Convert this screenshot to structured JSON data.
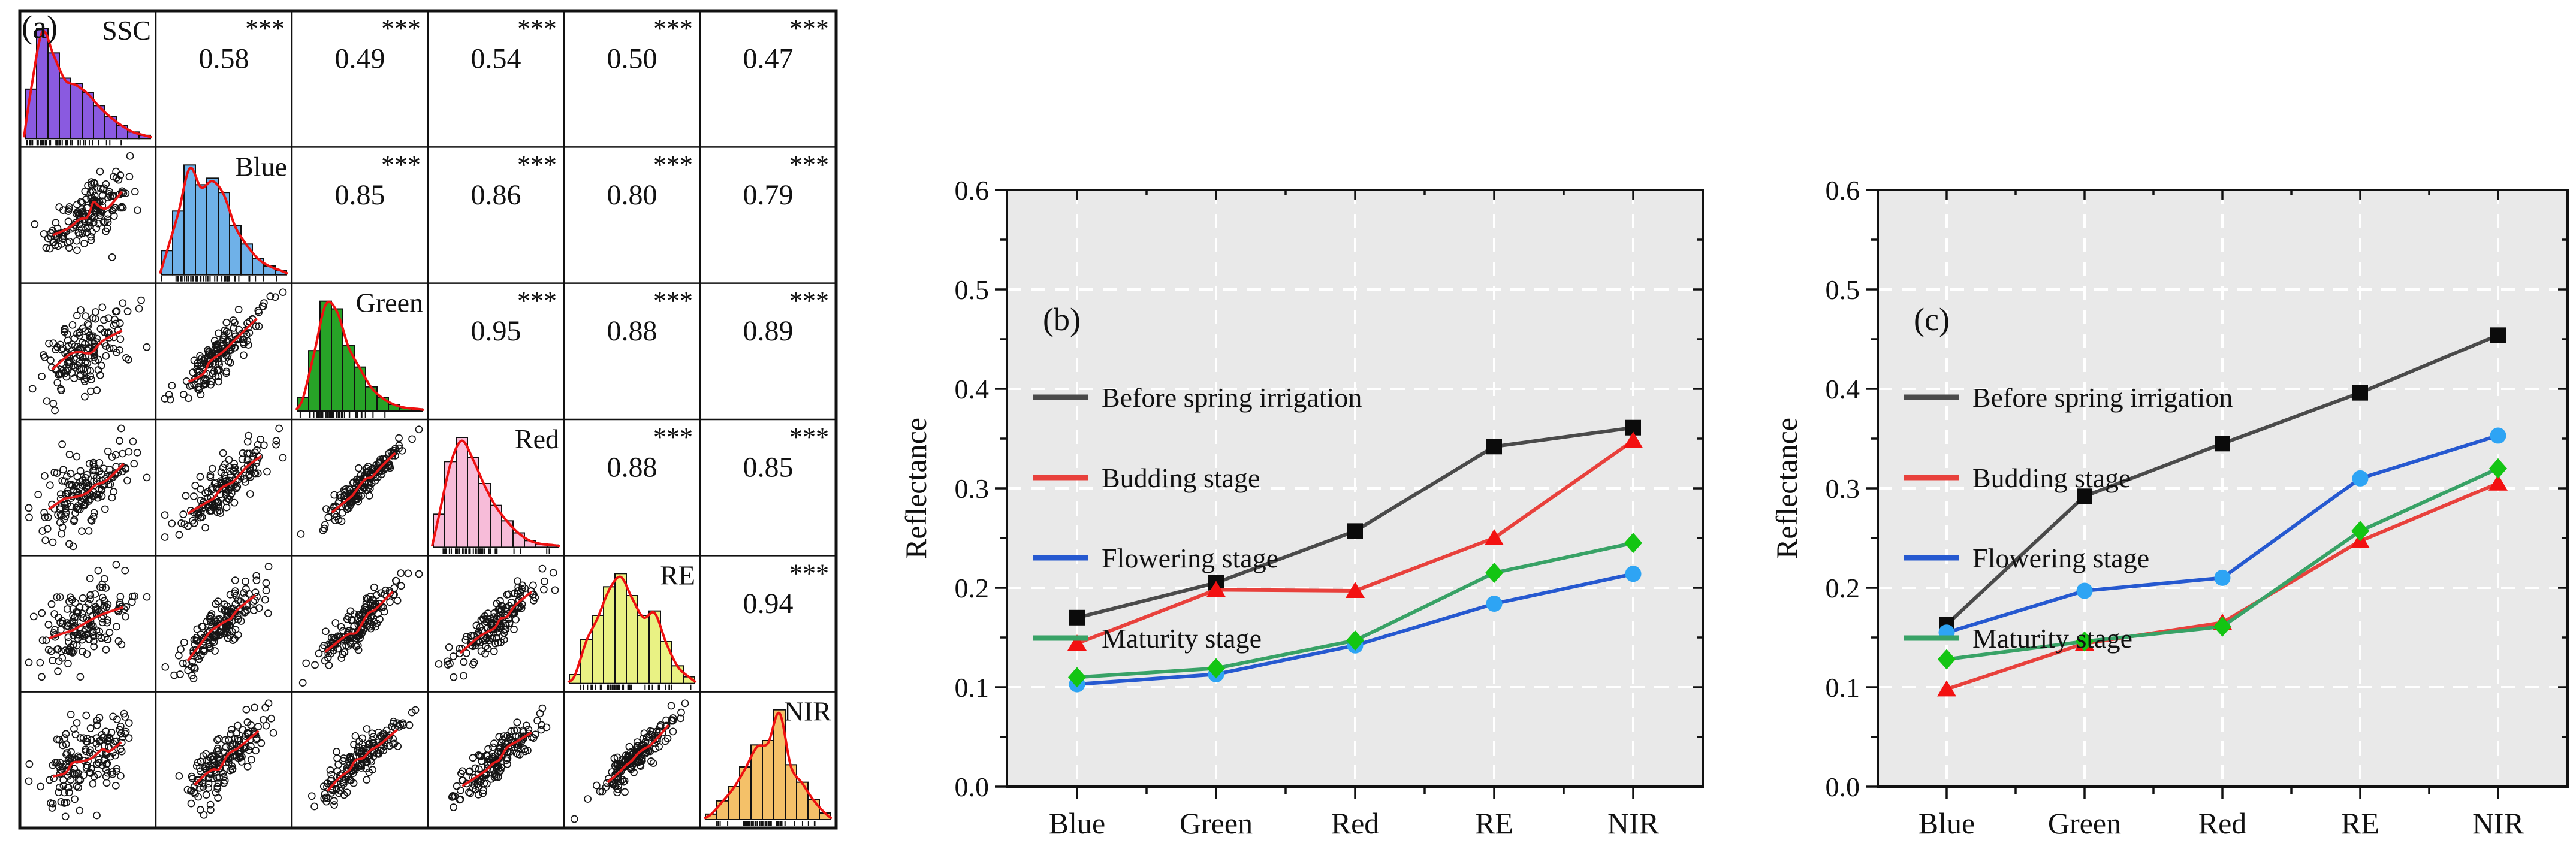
{
  "panels": {
    "a": {
      "label": "(a)"
    },
    "b": {
      "label": "(b)"
    },
    "c": {
      "label": "(c)"
    }
  },
  "colors": {
    "plot_background": "#e9e9e9",
    "gridline": "#ffffff",
    "significance_stars": "#d94a62",
    "scatter_fit_line": "#e51a1a",
    "histogram_curve": "#ee1111",
    "spine": "#111111"
  },
  "chart_data": [
    {
      "type": "scatter",
      "subtype": "correlation-pairplot",
      "panel": "(a)",
      "variables": [
        {
          "name": "SSC",
          "fill": "#8a5ae0"
        },
        {
          "name": "Blue",
          "fill": "#6fb1e8"
        },
        {
          "name": "Green",
          "fill": "#27a327"
        },
        {
          "name": "Red",
          "fill": "#f7bcd9"
        },
        {
          "name": "RE",
          "fill": "#e9f284"
        },
        {
          "name": "NIR",
          "fill": "#f4c169"
        }
      ],
      "significance": "***",
      "correlations": [
        [
          null,
          0.58,
          0.49,
          0.54,
          0.5,
          0.47
        ],
        [
          null,
          null,
          0.85,
          0.86,
          0.8,
          0.79
        ],
        [
          null,
          null,
          null,
          0.95,
          0.88,
          0.89
        ],
        [
          null,
          null,
          null,
          null,
          0.88,
          0.85
        ],
        [
          null,
          null,
          null,
          null,
          null,
          0.94
        ],
        [
          null,
          null,
          null,
          null,
          null,
          null
        ]
      ],
      "diagonal": "histogram with red density curve and rug marks",
      "lower_triangle": "black open-circle scatter plots with red fit line",
      "histograms": [
        [
          0.45,
          1.0,
          0.78,
          0.55,
          0.5,
          0.42,
          0.3,
          0.2,
          0.12,
          0.06,
          0.03
        ],
        [
          0.22,
          0.58,
          1.0,
          0.82,
          0.88,
          0.75,
          0.45,
          0.28,
          0.15,
          0.08,
          0.04
        ],
        [
          0.12,
          0.55,
          1.0,
          0.93,
          0.6,
          0.4,
          0.22,
          0.12,
          0.06,
          0.03,
          0.02
        ],
        [
          0.3,
          0.78,
          1.0,
          0.82,
          0.58,
          0.38,
          0.24,
          0.13,
          0.06,
          0.03,
          0.02
        ],
        [
          0.08,
          0.4,
          0.62,
          0.88,
          1.0,
          0.8,
          0.62,
          0.66,
          0.38,
          0.16,
          0.06
        ],
        [
          0.05,
          0.17,
          0.3,
          0.48,
          0.68,
          0.72,
          1.0,
          0.5,
          0.34,
          0.18,
          0.06
        ]
      ]
    },
    {
      "type": "line",
      "panel": "(b)",
      "ylabel": "Reflectance",
      "ylim": [
        0.0,
        0.6
      ],
      "yticks": [
        "0.0",
        "0.1",
        "0.2",
        "0.3",
        "0.4",
        "0.5",
        "0.6"
      ],
      "categories": [
        "Blue",
        "Green",
        "Red",
        "RE",
        "NIR"
      ],
      "grid": "white dashed gridlines on gray background",
      "legend_position": "upper-left",
      "series": [
        {
          "name": "Before spring irrigation",
          "color": "#4a4a4a",
          "marker": "square",
          "marker_color": "#0b0b0b",
          "values": [
            0.17,
            0.205,
            0.257,
            0.342,
            0.361
          ]
        },
        {
          "name": "Budding stage",
          "color": "#e8413c",
          "marker": "triangle",
          "marker_color": "#f31111",
          "values": [
            0.144,
            0.198,
            0.197,
            0.25,
            0.348
          ]
        },
        {
          "name": "Flowering stage",
          "color": "#2659d0",
          "marker": "circle",
          "marker_color": "#2ea4f4",
          "values": [
            0.103,
            0.113,
            0.142,
            0.184,
            0.214
          ]
        },
        {
          "name": "Maturity stage",
          "color": "#38a266",
          "marker": "diamond",
          "marker_color": "#13c513",
          "values": [
            0.11,
            0.119,
            0.147,
            0.215,
            0.245
          ]
        }
      ]
    },
    {
      "type": "line",
      "panel": "(c)",
      "ylabel": "Reflectance",
      "ylim": [
        0.0,
        0.6
      ],
      "yticks": [
        "0.0",
        "0.1",
        "0.2",
        "0.3",
        "0.4",
        "0.5",
        "0.6"
      ],
      "categories": [
        "Blue",
        "Green",
        "Red",
        "RE",
        "NIR"
      ],
      "grid": "white dashed gridlines on gray background",
      "legend_position": "upper-left",
      "series": [
        {
          "name": "Before spring irrigation",
          "color": "#4a4a4a",
          "marker": "square",
          "marker_color": "#0b0b0b",
          "values": [
            0.163,
            0.292,
            0.345,
            0.396,
            0.454
          ]
        },
        {
          "name": "Budding stage",
          "color": "#e8413c",
          "marker": "triangle",
          "marker_color": "#f31111",
          "values": [
            0.098,
            0.144,
            0.165,
            0.247,
            0.305
          ]
        },
        {
          "name": "Flowering stage",
          "color": "#2659d0",
          "marker": "circle",
          "marker_color": "#2ea4f4",
          "values": [
            0.155,
            0.197,
            0.21,
            0.31,
            0.353
          ]
        },
        {
          "name": "Maturity stage",
          "color": "#38a266",
          "marker": "diamond",
          "marker_color": "#13c513",
          "values": [
            0.128,
            0.146,
            0.161,
            0.257,
            0.32
          ]
        }
      ]
    }
  ]
}
